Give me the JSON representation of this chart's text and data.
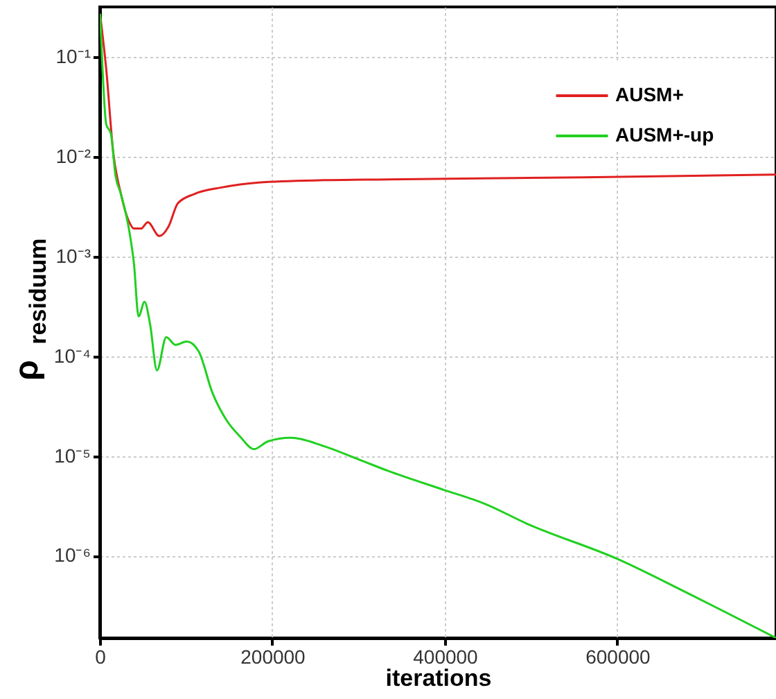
{
  "chart_data": {
    "type": "line",
    "xlabel": "iterations",
    "ylabel": "ρ$_{residuum}$",
    "xlim": [
      0,
      784000
    ],
    "xticks": [
      0,
      200000,
      400000,
      600000
    ],
    "ylim": [
      1.5e-07,
      0.316
    ],
    "log": true,
    "yticks": [
      {
        "value": 0.1,
        "label": "10⁻¹"
      },
      {
        "value": 0.01,
        "label": "10⁻²"
      },
      {
        "value": 0.001,
        "label": "10⁻³"
      },
      {
        "value": 0.0001,
        "label": "10⁻⁴"
      },
      {
        "value": 1e-05,
        "label": "10⁻⁵"
      },
      {
        "value": 1e-06,
        "label": "10⁻⁶"
      }
    ],
    "grid": true,
    "legend": "top right",
    "marker": "none",
    "line_style": "solid",
    "series": [
      {
        "name": "AUSM+",
        "color": "#e02020",
        "x": [
          300,
          7500,
          15600,
          24600,
          34200,
          39600,
          47700,
          55700,
          69100,
          79800,
          90500,
          109000,
          141000,
          184000,
          259000,
          334000,
          560000,
          784000
        ],
        "values": [
          0.27,
          0.075,
          0.011,
          0.0042,
          0.0022,
          0.0019,
          0.0019,
          0.0022,
          0.0016,
          0.002,
          0.0034,
          0.0042,
          0.0049,
          0.0055,
          0.0058,
          0.0059,
          0.0062,
          0.0066
        ]
      },
      {
        "name": "AUSM+-up",
        "color": "#20d020",
        "x": [
          300,
          3200,
          7500,
          12850,
          18200,
          24600,
          34200,
          39600,
          45000,
          51900,
          58300,
          66300,
          77100,
          87800,
          101000,
          114600,
          130600,
          146700,
          162800,
          178800,
          194900,
          221700,
          259200,
          302000,
          334000,
          398000,
          447000,
          495000,
          600000,
          682000,
          784000
        ],
        "values": [
          0.27,
          0.075,
          0.021,
          0.017,
          0.0065,
          0.0042,
          0.0018,
          0.00085,
          0.00025,
          0.00035,
          0.00021,
          7.2e-05,
          0.000155,
          0.00013,
          0.00014,
          0.000112,
          4.3e-05,
          2.3e-05,
          1.56e-05,
          1.17e-05,
          1.4e-05,
          1.52e-05,
          1.26e-05,
          9.1e-06,
          7.1e-06,
          4.6e-06,
          3.3e-06,
          2.1e-06,
          9.3e-07,
          4.2e-07,
          1.5e-07
        ]
      }
    ]
  }
}
